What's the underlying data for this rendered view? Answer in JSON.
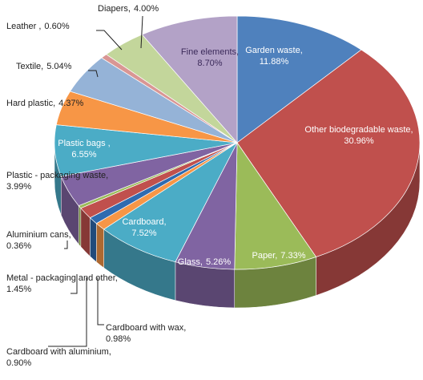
{
  "chart_data": {
    "type": "pie3d",
    "categories": [
      "Garden waste,",
      "Other biodegradable waste,",
      "Paper,",
      "Glass,",
      "Cardboard,",
      "Cardboard with wax,",
      "Cardboard with aluminium,",
      "Metal - packaging and other,",
      "Aluminium cans,",
      "Plastic - packaging waste,",
      "Plastic bags ,",
      "Hard plastic,",
      "Textile,",
      "Leather ,",
      "Diapers,",
      "Fine elements,"
    ],
    "values": [
      11.88,
      30.96,
      7.33,
      5.26,
      7.52,
      0.98,
      0.9,
      1.45,
      0.36,
      3.99,
      6.55,
      4.37,
      5.04,
      0.6,
      4.0,
      8.7
    ],
    "value_labels": [
      "11.88%",
      "30.96%",
      "7.33%",
      "5.26%",
      "7.52%",
      "0.98%",
      "0.90%",
      "1.45%",
      "0.36%",
      "3.99%",
      "6.55%",
      "4.37%",
      "5.04%",
      "0.60%",
      "4.00%",
      "8.70%"
    ],
    "colors": [
      "#4f81bd",
      "#c0504d",
      "#9bbb59",
      "#8064a2",
      "#4bacc6",
      "#f79646",
      "#2f6bb0",
      "#c0504d",
      "#9bbb59",
      "#8064a2",
      "#4bacc6",
      "#f79646",
      "#95b3d7",
      "#d99694",
      "#c3d69b",
      "#b3a2c7"
    ]
  }
}
